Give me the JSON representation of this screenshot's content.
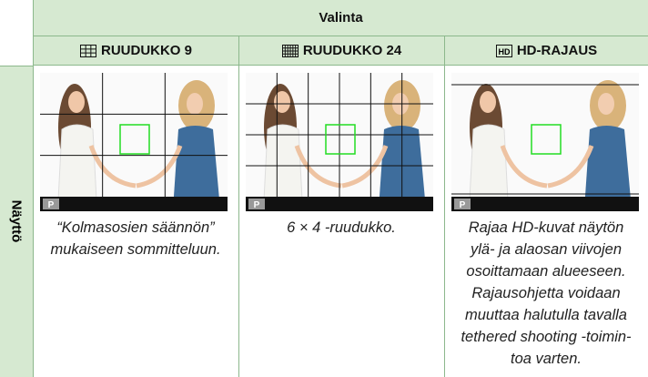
{
  "table": {
    "title": "Valinta",
    "row_header": "Näyttö",
    "mode_label": "P",
    "columns": [
      {
        "name": "RUUDUKKO 9",
        "description": [
          "“Kolmasosien säännön”",
          "mukaiseen sommitteluun."
        ]
      },
      {
        "name": "RUUDUKKO 24",
        "description": [
          "6 × 4 -ruudukko."
        ]
      },
      {
        "name": "HD-RAJAUS",
        "icon_text": "HD",
        "description": [
          "Rajaa HD-kuvat näytön",
          "ylä- ja alaosan viivojen",
          "osoittamaan alueeseen.",
          "Rajausohjetta voidaan",
          "muuttaa halutulla tavalla",
          "tethered shooting -toimin-",
          "toa varten."
        ]
      }
    ]
  }
}
